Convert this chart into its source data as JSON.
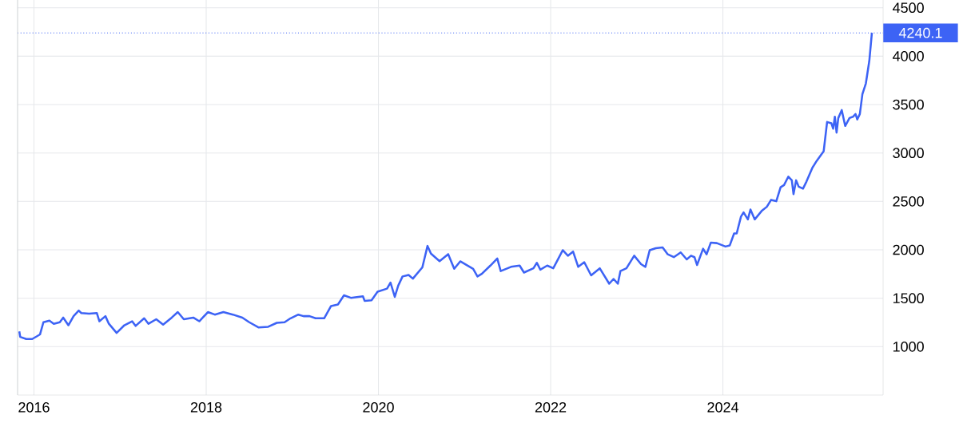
{
  "chart_data": {
    "type": "line",
    "x": [
      2015.83,
      2015.84,
      2015.91,
      2015.98,
      2016.04,
      2016.07,
      2016.11,
      2016.18,
      2016.23,
      2016.3,
      2016.34,
      2016.4,
      2016.46,
      2016.52,
      2016.55,
      2016.64,
      2016.73,
      2016.76,
      2016.83,
      2016.87,
      2016.96,
      2017.05,
      2017.14,
      2017.18,
      2017.28,
      2017.33,
      2017.42,
      2017.5,
      2017.6,
      2017.67,
      2017.74,
      2017.85,
      2017.92,
      2018.02,
      2018.1,
      2018.2,
      2018.31,
      2018.42,
      2018.5,
      2018.61,
      2018.72,
      2018.82,
      2018.91,
      2018.98,
      2019.07,
      2019.13,
      2019.2,
      2019.27,
      2019.37,
      2019.45,
      2019.53,
      2019.6,
      2019.68,
      2019.82,
      2019.84,
      2019.92,
      2019.99,
      2020.1,
      2020.14,
      2020.19,
      2020.23,
      2020.28,
      2020.35,
      2020.4,
      2020.51,
      2020.57,
      2020.61,
      2020.71,
      2020.81,
      2020.88,
      2020.95,
      2021.1,
      2021.15,
      2021.2,
      2021.3,
      2021.38,
      2021.42,
      2021.54,
      2021.64,
      2021.69,
      2021.8,
      2021.84,
      2021.88,
      2021.96,
      2022.03,
      2022.09,
      2022.14,
      2022.2,
      2022.26,
      2022.32,
      2022.39,
      2022.47,
      2022.57,
      2022.68,
      2022.73,
      2022.78,
      2022.81,
      2022.88,
      2022.97,
      2023.05,
      2023.1,
      2023.15,
      2023.22,
      2023.3,
      2023.36,
      2023.43,
      2023.51,
      2023.58,
      2023.63,
      2023.67,
      2023.7,
      2023.77,
      2023.81,
      2023.86,
      2023.93,
      2024.03,
      2024.08,
      2024.13,
      2024.16,
      2024.21,
      2024.24,
      2024.29,
      2024.32,
      2024.37,
      2024.45,
      2024.51,
      2024.56,
      2024.62,
      2024.67,
      2024.71,
      2024.76,
      2024.8,
      2024.82,
      2024.85,
      2024.88,
      2024.93,
      2024.97,
      2025.04,
      2025.09,
      2025.17,
      2025.21,
      2025.26,
      2025.28,
      2025.3,
      2025.32,
      2025.34,
      2025.38,
      2025.42,
      2025.47,
      2025.51,
      2025.54,
      2025.56,
      2025.59,
      2025.62,
      2025.66,
      2025.7,
      2025.73
    ],
    "series": [
      {
        "color": "#3d63f5",
        "values": [
          1157,
          1101,
          1079,
          1079,
          1110,
          1126,
          1252,
          1268,
          1236,
          1252,
          1300,
          1221,
          1315,
          1372,
          1347,
          1340,
          1347,
          1262,
          1315,
          1236,
          1142,
          1221,
          1262,
          1214,
          1293,
          1236,
          1283,
          1227,
          1300,
          1357,
          1283,
          1300,
          1262,
          1357,
          1331,
          1357,
          1331,
          1300,
          1252,
          1198,
          1205,
          1246,
          1252,
          1293,
          1331,
          1315,
          1315,
          1293,
          1293,
          1419,
          1435,
          1530,
          1504,
          1520,
          1473,
          1479,
          1567,
          1599,
          1662,
          1514,
          1630,
          1725,
          1740,
          1702,
          1819,
          2040,
          1961,
          1883,
          1955,
          1804,
          1881,
          1804,
          1725,
          1751,
          1837,
          1910,
          1780,
          1824,
          1837,
          1765,
          1809,
          1866,
          1795,
          1837,
          1809,
          1910,
          1996,
          1939,
          1982,
          1824,
          1872,
          1736,
          1809,
          1650,
          1699,
          1650,
          1780,
          1809,
          1939,
          1852,
          1824,
          1996,
          2017,
          2025,
          1953,
          1924,
          1973,
          1901,
          1939,
          1924,
          1843,
          2011,
          1953,
          2075,
          2069,
          2034,
          2046,
          2169,
          2169,
          2343,
          2387,
          2314,
          2416,
          2314,
          2401,
          2444,
          2516,
          2502,
          2646,
          2669,
          2756,
          2718,
          2575,
          2718,
          2652,
          2632,
          2704,
          2849,
          2920,
          3018,
          3320,
          3306,
          3251,
          3374,
          3210,
          3361,
          3443,
          3279,
          3361,
          3374,
          3402,
          3347,
          3402,
          3608,
          3718,
          3951,
          4240.1
        ]
      }
    ],
    "xlim": [
      2015.81,
      2025.86
    ],
    "xticks": [
      2016,
      2018,
      2020,
      2022,
      2024
    ],
    "ylim": [
      500,
      4580
    ],
    "yticks": [
      1000,
      1500,
      2000,
      2500,
      3000,
      3500,
      4000,
      4500
    ],
    "grid": true,
    "ref_lines": [
      {
        "axis": "y",
        "value": 4240.1,
        "label": "4240.1",
        "color": "#3d63f5",
        "line_style": "dotted"
      }
    ]
  }
}
